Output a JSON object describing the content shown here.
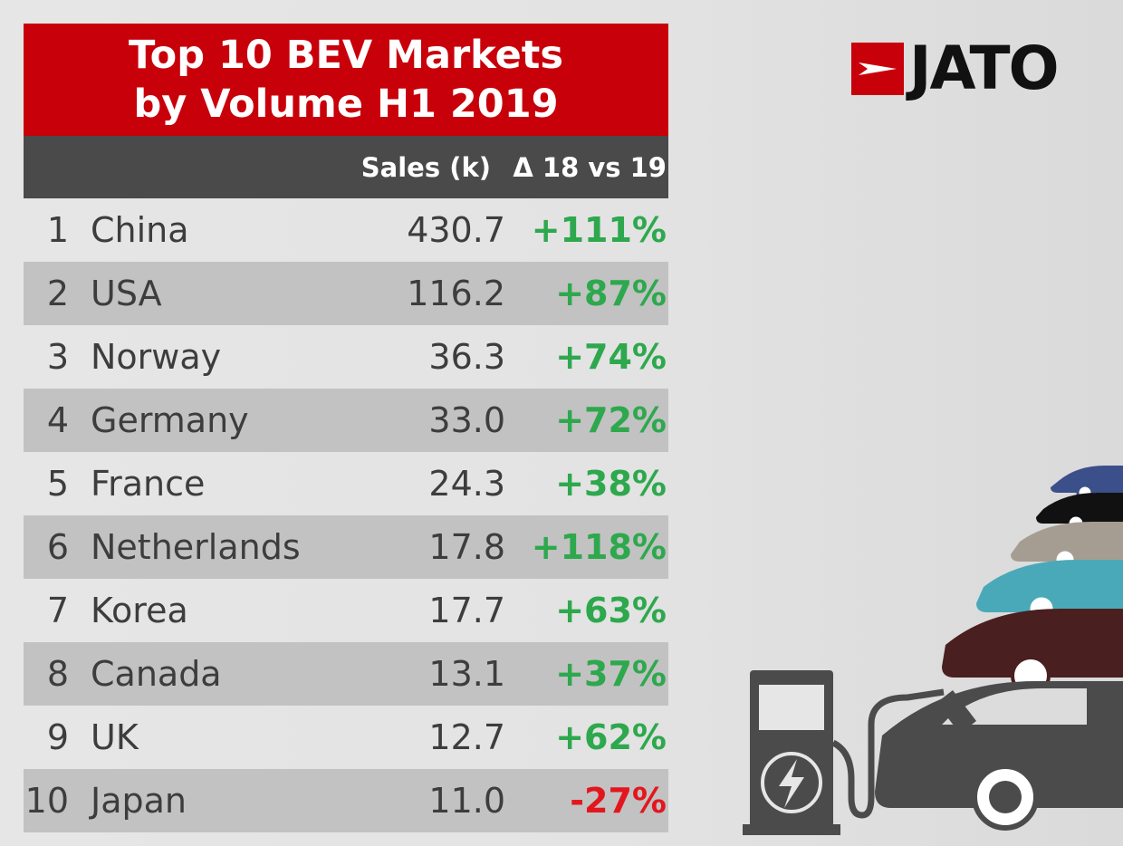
{
  "brand": {
    "name": "JATO"
  },
  "chart_data": {
    "type": "table",
    "title_lines": [
      "Top 10 BEV Markets",
      "by Volume H1 2019"
    ],
    "columns": [
      "Sales (k)",
      "Δ 18 vs 19"
    ],
    "rows": [
      {
        "rank": "1",
        "country": "China",
        "sales": "430.7",
        "change": "+111%"
      },
      {
        "rank": "2",
        "country": "USA",
        "sales": "116.2",
        "change": "+87%"
      },
      {
        "rank": "3",
        "country": "Norway",
        "sales": "36.3",
        "change": "+74%"
      },
      {
        "rank": "4",
        "country": "Germany",
        "sales": "33.0",
        "change": "+72%"
      },
      {
        "rank": "5",
        "country": "France",
        "sales": "24.3",
        "change": "+38%"
      },
      {
        "rank": "6",
        "country": "Netherlands",
        "sales": "17.8",
        "change": "+118%"
      },
      {
        "rank": "7",
        "country": "Korea",
        "sales": "17.7",
        "change": "+63%"
      },
      {
        "rank": "8",
        "country": "Canada",
        "sales": "13.1",
        "change": "+37%"
      },
      {
        "rank": "9",
        "country": "UK",
        "sales": "12.7",
        "change": "+62%"
      },
      {
        "rank": "10",
        "country": "Japan",
        "sales": "11.0",
        "change": "-27%"
      }
    ],
    "colors": {
      "title_band": "#c8000a",
      "header_band": "#4a4a4a",
      "positive": "#2ea84d",
      "negative": "#e3161e"
    }
  }
}
